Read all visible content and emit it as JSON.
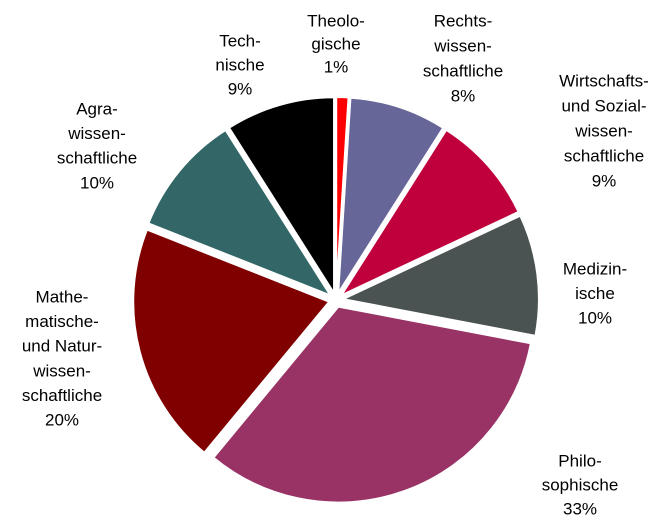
{
  "chart_data": {
    "type": "pie",
    "categories": [
      [
        "Theolo-",
        "gische"
      ],
      [
        "Rechts-",
        "wissen-",
        "schaftliche"
      ],
      [
        "Wirtschafts-",
        "und Sozial-",
        "wissen-",
        "schaftliche"
      ],
      [
        "Medizin-",
        "ische"
      ],
      [
        "Philo-",
        "sophische"
      ],
      [
        "Mathe-",
        "matische-",
        "und Natur-",
        "wissen-",
        "schaftliche"
      ],
      [
        "Agra-",
        "wissen-",
        "schaftliche"
      ],
      [
        "Tech-",
        "nische"
      ]
    ],
    "values": [
      1,
      8,
      9,
      10,
      33,
      20,
      10,
      9
    ],
    "value_labels": [
      "1%",
      "8%",
      "9%",
      "10%",
      "33%",
      "20%",
      "10%",
      "9%"
    ],
    "colors": [
      "#ff0000",
      "#666699",
      "#c0003c",
      "#4a5252",
      "#993366",
      "#800000",
      "#336666",
      "#000000"
    ]
  }
}
